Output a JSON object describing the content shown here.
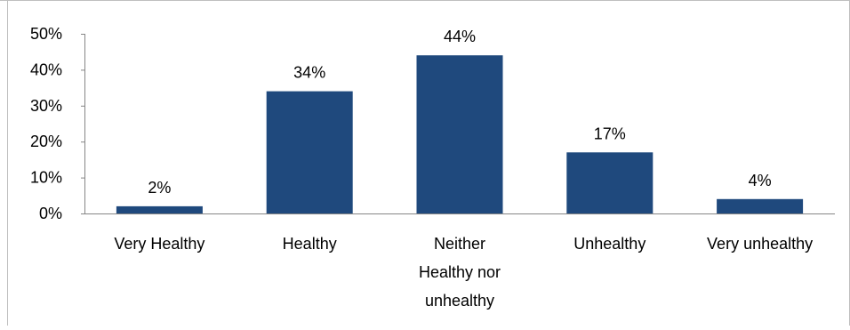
{
  "chart_data": {
    "type": "bar",
    "categories": [
      "Very Healthy",
      "Healthy",
      "Neither Healthy nor unhealthy",
      "Unhealthy",
      "Very unhealthy"
    ],
    "category_lines": [
      [
        "Very Healthy"
      ],
      [
        "Healthy"
      ],
      [
        "Neither",
        "Healthy nor",
        "unhealthy"
      ],
      [
        "Unhealthy"
      ],
      [
        "Very unhealthy"
      ]
    ],
    "values": [
      2,
      34,
      44,
      17,
      4
    ],
    "data_labels": [
      "2%",
      "34%",
      "44%",
      "17%",
      "4%"
    ],
    "y_ticks": [
      "0%",
      "10%",
      "20%",
      "30%",
      "40%",
      "50%"
    ],
    "ylim": [
      0,
      50
    ],
    "title": "",
    "xlabel": "",
    "ylabel": "",
    "grid": false,
    "legend": "none",
    "bar_color": "#1f497d",
    "axis_color": "#868686"
  }
}
